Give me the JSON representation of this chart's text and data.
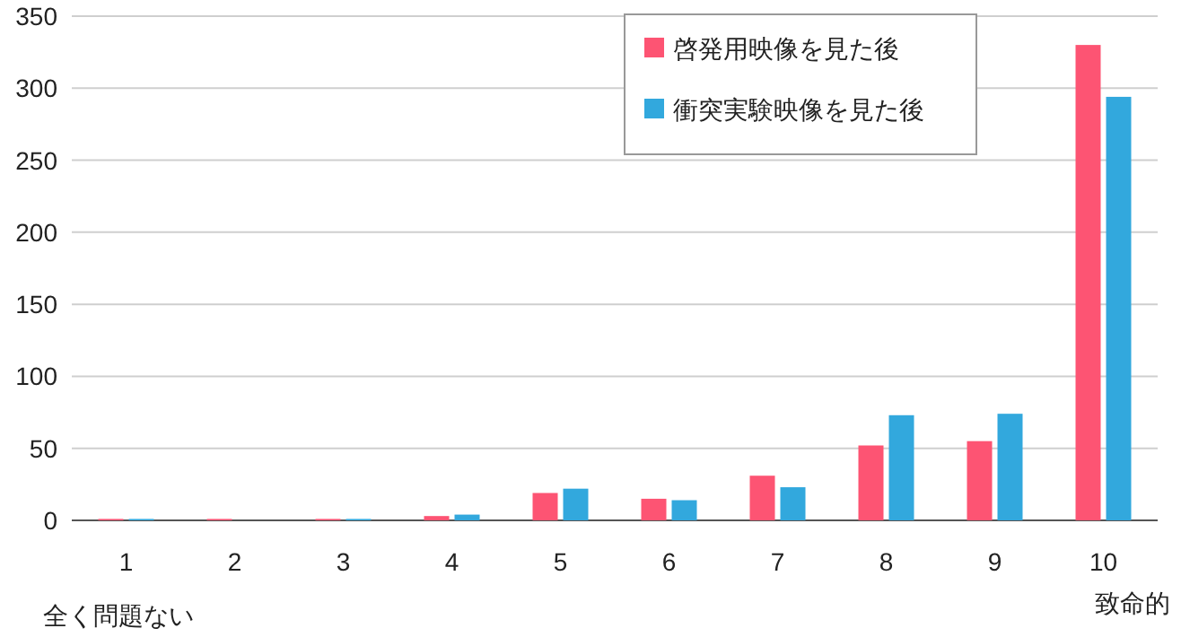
{
  "chart_data": {
    "type": "bar",
    "categories": [
      "1",
      "2",
      "3",
      "4",
      "5",
      "6",
      "7",
      "8",
      "9",
      "10"
    ],
    "series": [
      {
        "name": "啓発用映像を見た後",
        "color": "#fd5473",
        "values": [
          1,
          1,
          1,
          3,
          19,
          15,
          31,
          52,
          55,
          330
        ]
      },
      {
        "name": "衝突実験映像を見た後",
        "color": "#32a8dd",
        "values": [
          1,
          0,
          1,
          4,
          22,
          14,
          23,
          73,
          74,
          294
        ]
      }
    ],
    "ylim": [
      0,
      350
    ],
    "yticks": [
      0,
      50,
      100,
      150,
      200,
      250,
      300,
      350
    ],
    "grid": "y",
    "legend": "top right",
    "annotations": [
      "全く問題ない",
      "致命的"
    ]
  }
}
